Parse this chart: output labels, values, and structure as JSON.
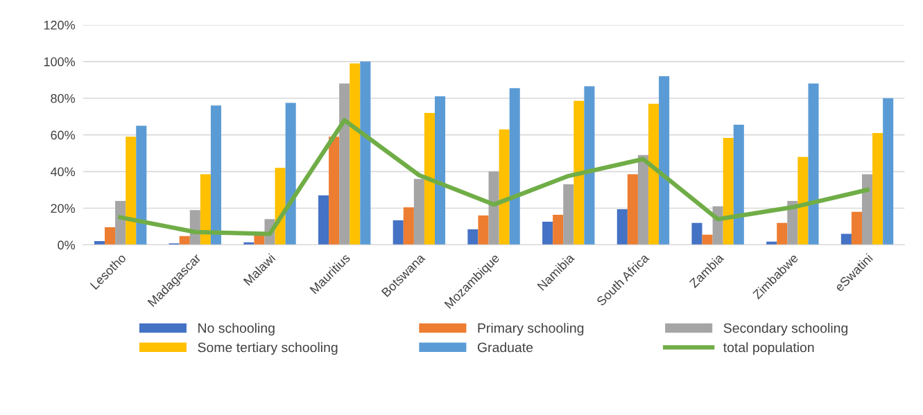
{
  "chart_data": {
    "type": "bar",
    "categories": [
      "Lesotho",
      "Madagascar",
      "Malawi",
      "Mauritius",
      "Botswana",
      "Mozambique",
      "Namibia",
      "South Africa",
      "Zambia",
      "Zimbabwe",
      "eSwatini"
    ],
    "series": [
      {
        "name": "No schooling",
        "color": "#4472c4",
        "values": [
          2,
          0.8,
          1.4,
          27,
          13.4,
          8.5,
          12.6,
          19.4,
          12,
          1.8,
          6
        ]
      },
      {
        "name": "Primary schooling",
        "color": "#ed7d31",
        "values": [
          9.6,
          4.8,
          6,
          59,
          20.5,
          16,
          16.4,
          38.5,
          5.5,
          12,
          18
        ]
      },
      {
        "name": "Secondary schooling",
        "color": "#a5a5a5",
        "values": [
          24,
          19,
          14,
          88,
          36,
          40,
          33,
          49,
          21,
          24,
          38.5
        ]
      },
      {
        "name": "Some tertiary schooling",
        "color": "#ffc000",
        "values": [
          59,
          38.5,
          42,
          99,
          72,
          63,
          78.6,
          77,
          58.4,
          48,
          61
        ]
      },
      {
        "name": "Graduate",
        "color": "#5b9bd5",
        "values": [
          65,
          76,
          77.5,
          100,
          81,
          85.5,
          86.5,
          92,
          65.5,
          88,
          80
        ]
      },
      {
        "name": "total population",
        "color": "#70ad47",
        "type": "line",
        "values": [
          15,
          7,
          6,
          68,
          38,
          22,
          37.6,
          46.8,
          14,
          20.5,
          30
        ]
      }
    ],
    "ylim": [
      0,
      120
    ],
    "yticks": [
      {
        "value": 0,
        "label": "0%"
      },
      {
        "value": 20,
        "label": "20%"
      },
      {
        "value": 40,
        "label": "40%"
      },
      {
        "value": 60,
        "label": "60%"
      },
      {
        "value": 80,
        "label": "80%"
      },
      {
        "value": 100,
        "label": "100%"
      },
      {
        "value": 120,
        "label": "120%"
      }
    ],
    "grid": "y",
    "legend": "bottom"
  }
}
